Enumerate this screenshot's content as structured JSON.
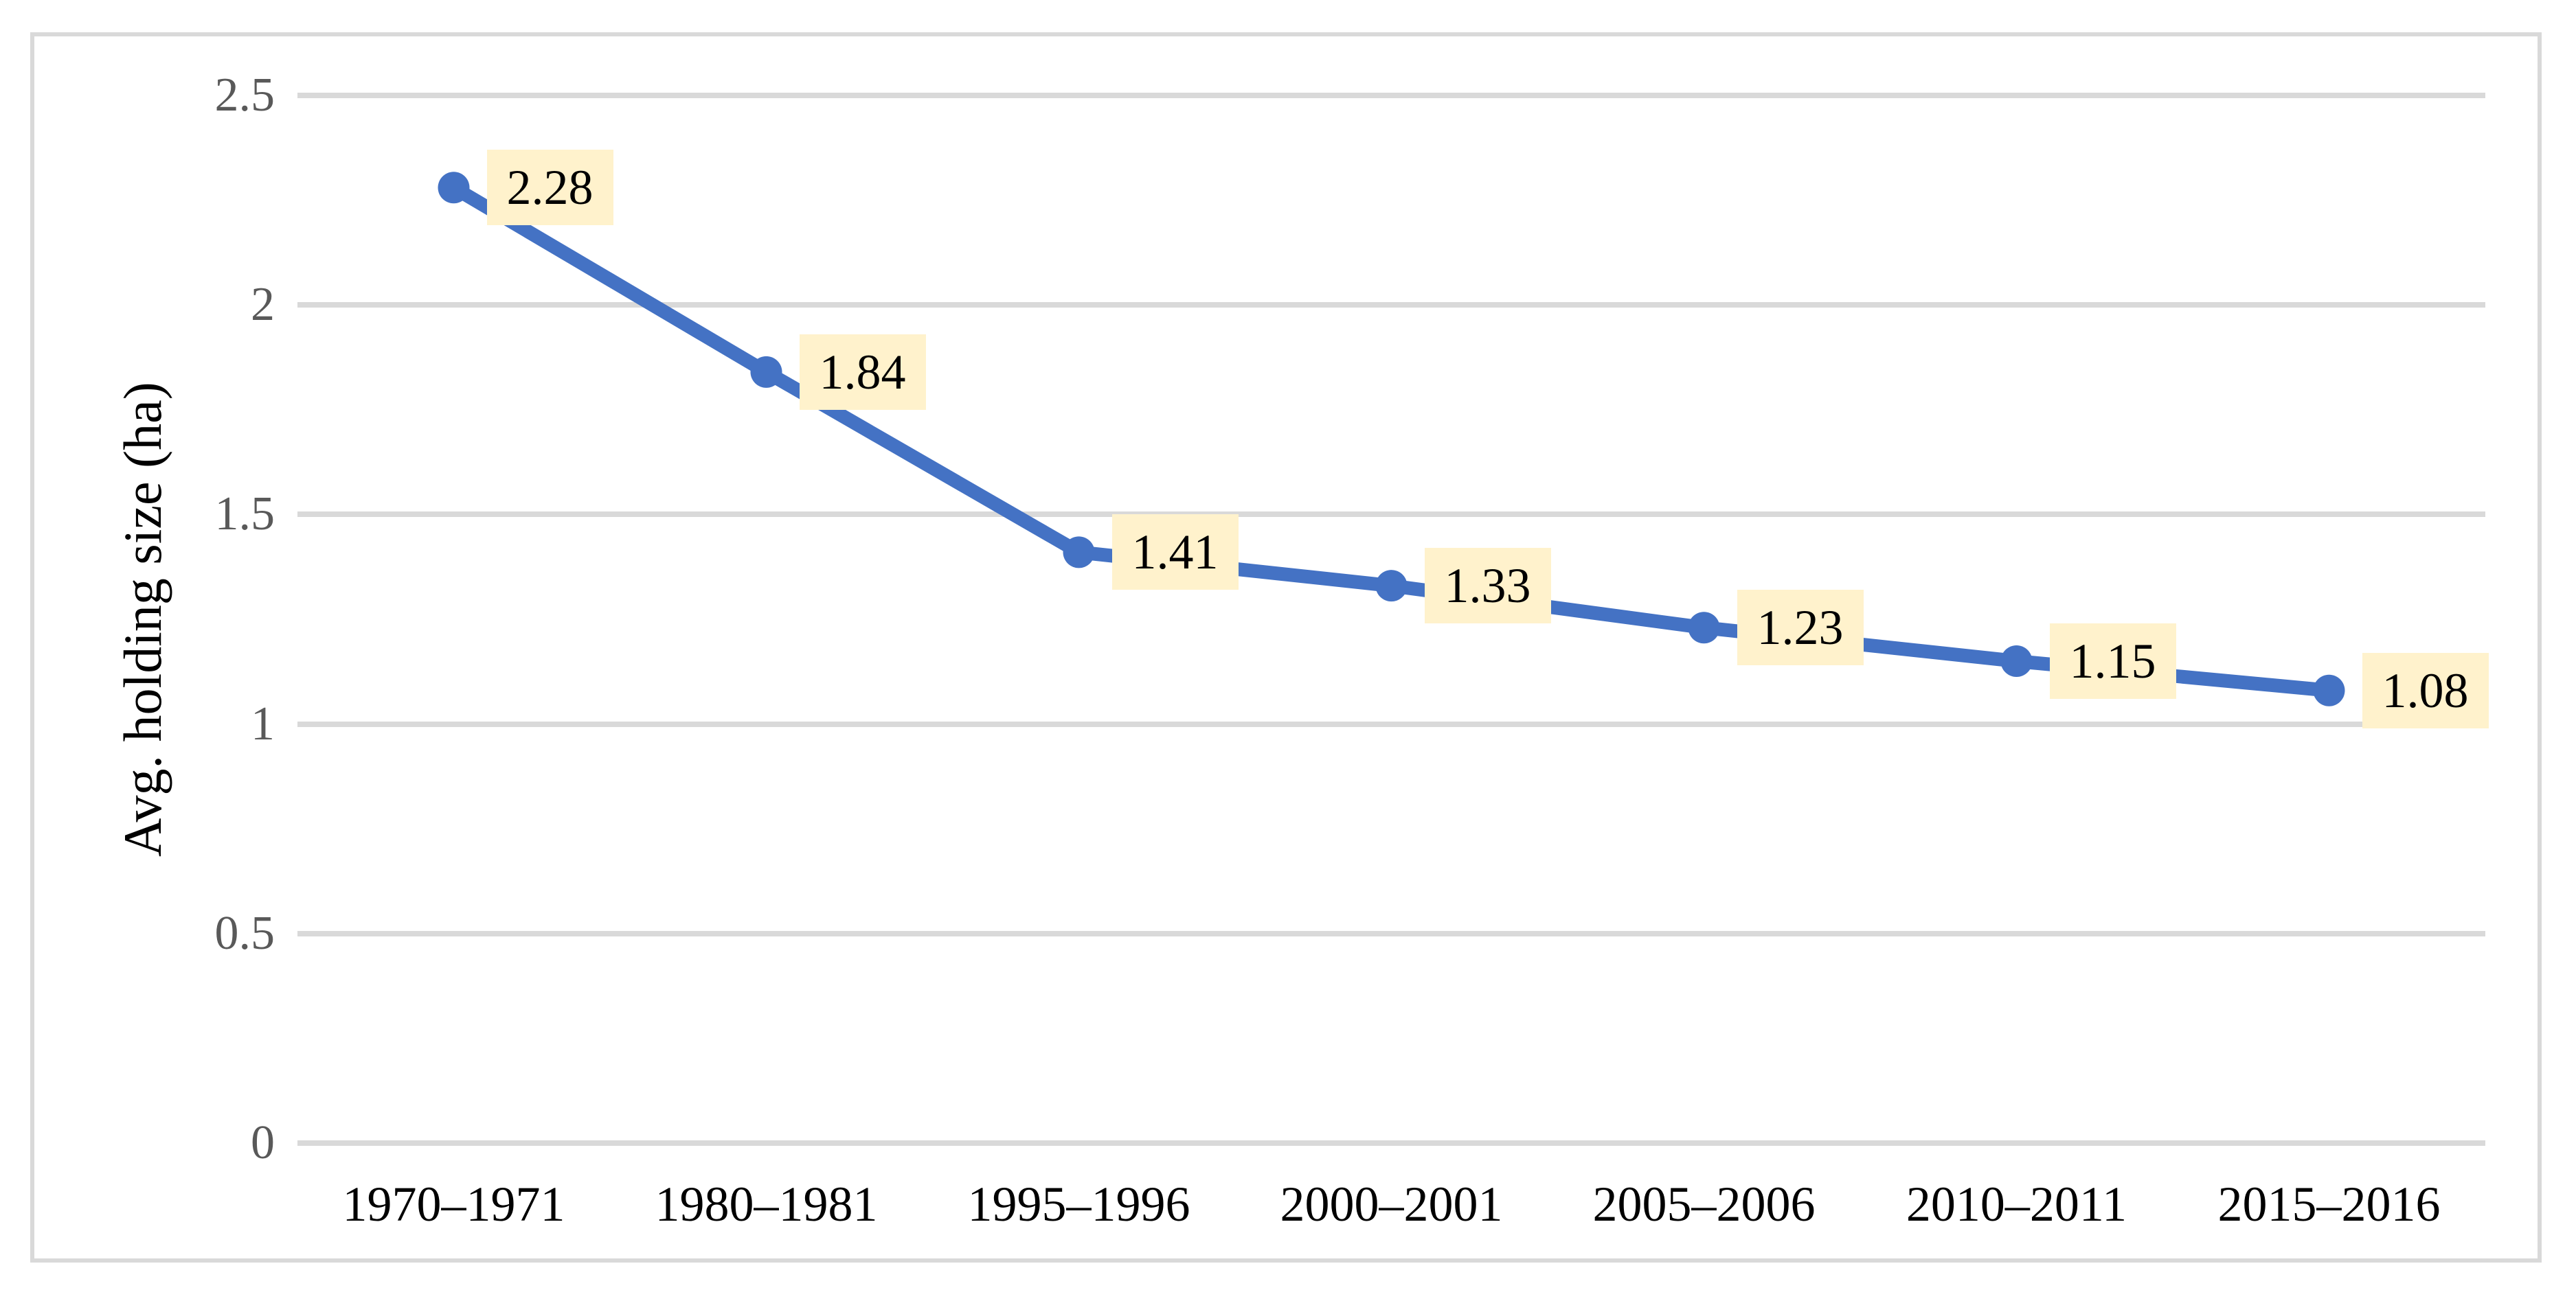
{
  "chart_data": {
    "type": "line",
    "title": "",
    "xlabel": "",
    "ylabel": "Avg. holding size (ha)",
    "categories": [
      "1970–1971",
      "1980–1981",
      "1995–1996",
      "2000–2001",
      "2005–2006",
      "2010–2011",
      "2015–2016"
    ],
    "series": [
      {
        "name": "Avg. holding size (ha)",
        "values": [
          2.28,
          1.84,
          1.41,
          1.33,
          1.23,
          1.15,
          1.08
        ]
      }
    ],
    "data_labels": [
      "2.28",
      "1.84",
      "1.41",
      "1.33",
      "1.23",
      "1.15",
      "1.08"
    ],
    "y_ticks": [
      "0",
      "0.5",
      "1",
      "1.5",
      "2",
      "2.5"
    ],
    "ylim": [
      0,
      2.5
    ],
    "grid": "horizontal-only",
    "legend_position": "none",
    "colors": {
      "line": "#4472C4",
      "marker": "#4472C4",
      "data_label_bg": "#FFF2CC",
      "data_label_text": "#000000",
      "gridline": "#D9D9D9",
      "axis_line": "#D9D9D9",
      "y_tick_text": "#595959",
      "x_tick_text": "#000000",
      "frame_border": "#D9D9D9",
      "background": "#FFFFFF"
    }
  }
}
